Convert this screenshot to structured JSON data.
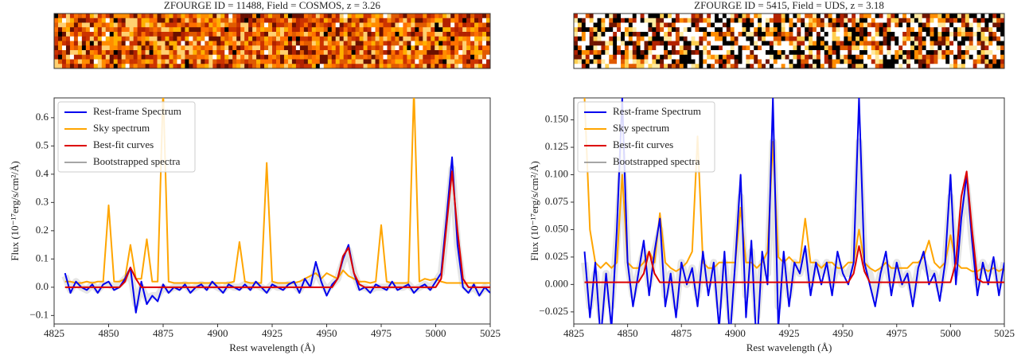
{
  "chart_data": [
    {
      "type": "line",
      "title": "ZFOURGE ID = 11488, Field = COSMOS, z = 3.26",
      "x_label": "Rest wavelength (Å)",
      "y_label": "Flux (10⁻¹⁷erg/s/cm²/Å)",
      "xlim": [
        4825,
        5025
      ],
      "ylim": [
        -0.13,
        0.67
      ],
      "xticks": [
        4825,
        4850,
        4875,
        4900,
        4925,
        4950,
        4975,
        5000,
        5025
      ],
      "yticks": [
        {
          "value": -0.1,
          "label": "−0.1"
        },
        {
          "value": 0,
          "label": "0.0"
        },
        0.1,
        0.2,
        0.3,
        0.4,
        0.5,
        0.6
      ],
      "legend": "upper left",
      "x": [
        4830,
        4832.5,
        4835,
        4837.5,
        4840,
        4842.5,
        4845,
        4847.5,
        4850,
        4852.5,
        4855,
        4857.5,
        4860,
        4862.5,
        4865,
        4867.5,
        4870,
        4872.5,
        4875,
        4877.5,
        4880,
        4882.5,
        4885,
        4887.5,
        4890,
        4892.5,
        4895,
        4897.5,
        4900,
        4902.5,
        4905,
        4907.5,
        4910,
        4912.5,
        4915,
        4917.5,
        4920,
        4922.5,
        4925,
        4927.5,
        4930,
        4932.5,
        4935,
        4937.5,
        4940,
        4942.5,
        4945,
        4947.5,
        4950,
        4952.5,
        4955,
        4957.5,
        4960,
        4962.5,
        4965,
        4967.5,
        4970,
        4972.5,
        4975,
        4977.5,
        4980,
        4982.5,
        4985,
        4987.5,
        4990,
        4992.5,
        4995,
        4997.5,
        5000,
        5002.5,
        5005,
        5007.5,
        5010,
        5012.5,
        5015,
        5017.5,
        5020,
        5022.5,
        5025
      ],
      "series": [
        {
          "name": "Rest-frame Spectrum",
          "color": "#0000ee",
          "values": [
            0.05,
            -0.02,
            0.02,
            0,
            -0.01,
            0.01,
            -0.02,
            0.01,
            0.02,
            -0.01,
            0,
            0.03,
            0.07,
            -0.09,
            0.02,
            -0.06,
            -0.03,
            -0.05,
            0.01,
            -0.02,
            0,
            -0.01,
            0.01,
            -0.02,
            0,
            0.01,
            -0.01,
            0.02,
            0,
            -0.02,
            0.01,
            0,
            -0.01,
            0.01,
            -0.01,
            0.02,
            0,
            -0.02,
            0.01,
            0,
            -0.01,
            0.01,
            0.02,
            -0.02,
            0.03,
            0,
            0.09,
            0.02,
            -0.03,
            0.01,
            0.03,
            0.1,
            0.15,
            0.05,
            -0.01,
            0,
            -0.02,
            0.01,
            0,
            -0.01,
            0.02,
            -0.01,
            0,
            0.01,
            -0.02,
            0,
            0.01,
            -0.01,
            0.02,
            0.05,
            0.25,
            0.46,
            0.15,
            0,
            -0.02,
            0.01,
            -0.03,
            0,
            -0.02
          ]
        },
        {
          "name": "Sky spectrum",
          "color": "#ffa500",
          "values": [
            0.02,
            0.02,
            0.015,
            0.015,
            0.02,
            0.015,
            0.02,
            0.02,
            0.29,
            0.02,
            0.02,
            0.03,
            0.15,
            0.03,
            0.03,
            0.17,
            0.02,
            0.02,
            0.7,
            0.02,
            0.015,
            0.015,
            0.015,
            0.015,
            0.015,
            0.015,
            0.015,
            0.015,
            0.015,
            0.015,
            0.015,
            0.02,
            0.16,
            0.02,
            0.015,
            0.015,
            0.015,
            0.44,
            0.02,
            0.015,
            0.015,
            0.015,
            0.015,
            0.02,
            0.03,
            0.04,
            0.05,
            0.03,
            0.05,
            0.04,
            0.03,
            0.06,
            0.04,
            0.03,
            0.02,
            0.02,
            0.015,
            0.02,
            0.22,
            0.02,
            0.015,
            0.015,
            0.015,
            0.015,
            0.7,
            0.02,
            0.03,
            0.025,
            0.03,
            0.02,
            0.015,
            0.015,
            0.015,
            0.015,
            0.015,
            0.015,
            0.015,
            0.015,
            0.015
          ]
        },
        {
          "name": "Best-fit curves",
          "color": "#dd0000",
          "values": [
            0,
            0,
            0,
            0,
            0,
            0,
            0,
            0,
            0,
            0,
            0,
            0.02,
            0.07,
            0.03,
            0,
            0,
            0,
            0,
            0,
            0,
            0,
            0,
            0,
            0,
            0,
            0,
            0,
            0,
            0,
            0,
            0,
            0,
            0,
            0,
            0,
            0,
            0,
            0,
            0,
            0,
            0,
            0,
            0,
            0,
            0,
            0,
            0,
            0,
            0,
            0,
            0.03,
            0.11,
            0.14,
            0.05,
            0.01,
            0,
            0,
            0,
            0,
            0,
            0,
            0,
            0,
            0,
            0,
            0,
            0,
            0,
            0,
            0.03,
            0.22,
            0.41,
            0.2,
            0.03,
            0,
            0,
            0,
            0,
            0
          ]
        },
        {
          "name": "Bootstrapped spectra",
          "color": "#888888",
          "values": [
            0.04,
            -0.01,
            0.02,
            0,
            -0.01,
            0.01,
            -0.01,
            0.01,
            0.01,
            0,
            0.01,
            0.03,
            0.05,
            -0.06,
            0,
            -0.04,
            -0.03,
            -0.03,
            0,
            -0.01,
            0,
            0,
            0.01,
            -0.01,
            0,
            0.01,
            0,
            0.01,
            0,
            -0.01,
            0.01,
            0,
            0,
            0.01,
            0,
            0.01,
            0,
            -0.01,
            0.01,
            0,
            0,
            0.01,
            0.01,
            -0.01,
            0.02,
            0.01,
            0.06,
            0.02,
            -0.01,
            0.01,
            0.03,
            0.09,
            0.13,
            0.05,
            0,
            0,
            -0.01,
            0,
            0,
            0,
            0.01,
            0,
            0,
            0.01,
            -0.01,
            0,
            0.01,
            0,
            0.02,
            0.05,
            0.22,
            0.42,
            0.15,
            0.01,
            -0.01,
            0,
            -0.02,
            0,
            -0.01
          ]
        }
      ]
    },
    {
      "type": "line",
      "title": "ZFOURGE ID = 5415, Field = UDS, z = 3.18",
      "x_label": "Rest wavelength (Å)",
      "y_label": "Flux (10⁻¹⁷erg/s/cm²/Å)",
      "xlim": [
        4825,
        5025
      ],
      "ylim": [
        -0.036,
        0.17
      ],
      "xticks": [
        4825,
        4850,
        4875,
        4900,
        4925,
        4950,
        4975,
        5000,
        5025
      ],
      "yticks": [
        {
          "value": -0.025,
          "label": "−0.025"
        },
        {
          "value": 0,
          "label": "0.000"
        },
        0.025,
        {
          "value": 0.05,
          "label": "0.050"
        },
        0.075,
        {
          "value": 0.1,
          "label": "0.100"
        },
        0.125,
        {
          "value": 0.15,
          "label": "0.150"
        }
      ],
      "legend": "upper left",
      "x": [
        4830,
        4832.5,
        4835,
        4837.5,
        4840,
        4842.5,
        4845,
        4847.5,
        4850,
        4852.5,
        4855,
        4857.5,
        4860,
        4862.5,
        4865,
        4867.5,
        4870,
        4872.5,
        4875,
        4877.5,
        4880,
        4882.5,
        4885,
        4887.5,
        4890,
        4892.5,
        4895,
        4897.5,
        4900,
        4902.5,
        4905,
        4907.5,
        4910,
        4912.5,
        4915,
        4917.5,
        4920,
        4922.5,
        4925,
        4927.5,
        4930,
        4932.5,
        4935,
        4937.5,
        4940,
        4942.5,
        4945,
        4947.5,
        4950,
        4952.5,
        4955,
        4957.5,
        4960,
        4962.5,
        4965,
        4967.5,
        4970,
        4972.5,
        4975,
        4977.5,
        4980,
        4982.5,
        4985,
        4987.5,
        4990,
        4992.5,
        4995,
        4997.5,
        5000,
        5002.5,
        5005,
        5007.5,
        5010,
        5012.5,
        5015,
        5017.5,
        5020,
        5022.5,
        5025
      ],
      "series": [
        {
          "name": "Rest-frame Spectrum",
          "color": "#0000ee",
          "values": [
            0.03,
            -0.03,
            0.02,
            -0.05,
            0.01,
            -0.04,
            0.05,
            0.17,
            0.02,
            -0.02,
            0.01,
            0.04,
            -0.01,
            0.03,
            0.06,
            -0.02,
            0.01,
            -0.03,
            0.02,
            0,
            0.015,
            -0.02,
            0.03,
            -0.01,
            0.02,
            -0.04,
            0.03,
            -0.05,
            0.02,
            0.1,
            -0.03,
            0.04,
            -0.06,
            0.03,
            0,
            0.17,
            -0.04,
            0.03,
            -0.02,
            0.02,
            0.01,
            0.035,
            -0.01,
            0.02,
            0,
            0.02,
            -0.01,
            0.03,
            0.01,
            0,
            0.02,
            0.17,
            0.02,
            0,
            -0.02,
            0.01,
            0.03,
            -0.01,
            0.02,
            0,
            0.01,
            -0.02,
            0.015,
            0.03,
            0,
            0.01,
            -0.015,
            0.02,
            0.1,
            0,
            0.06,
            0.1,
            0.04,
            -0.01,
            0.02,
            0,
            0.025,
            -0.01,
            0.02
          ]
        },
        {
          "name": "Sky spectrum",
          "color": "#ffa500",
          "values": [
            0.17,
            0.05,
            0.02,
            0.015,
            0.02,
            0.015,
            0.02,
            0.1,
            0.02,
            0.015,
            0.015,
            0.02,
            0.03,
            0.02,
            0.065,
            0.02,
            0.015,
            0.012,
            0.015,
            0.02,
            0.03,
            0.135,
            0.02,
            0.015,
            0.015,
            0.02,
            0.02,
            0.02,
            0.02,
            0.07,
            0.02,
            0.02,
            0.015,
            0.02,
            0.03,
            0.13,
            0.025,
            0.02,
            0.025,
            0.02,
            0.02,
            0.06,
            0.02,
            0.02,
            0.015,
            0.02,
            0.02,
            0.015,
            0.015,
            0.02,
            0.02,
            0.05,
            0.02,
            0.015,
            0.012,
            0.015,
            0.02,
            0.015,
            0.015,
            0.015,
            0.015,
            0.02,
            0.02,
            0.025,
            0.04,
            0.02,
            0.015,
            0.02,
            0.045,
            0.02,
            0.015,
            0.015,
            0.012,
            0.012,
            0.015,
            0.012,
            0.015,
            0.012,
            0.015
          ]
        },
        {
          "name": "Best-fit curves",
          "color": "#dd0000",
          "values": [
            0.002,
            0.002,
            0.002,
            0.002,
            0.002,
            0.002,
            0.002,
            0.002,
            0.002,
            0.002,
            0.002,
            0.01,
            0.03,
            0.01,
            0.002,
            0.002,
            0.002,
            0.002,
            0.002,
            0.002,
            0.002,
            0.002,
            0.002,
            0.002,
            0.002,
            0.002,
            0.002,
            0.002,
            0.002,
            0.002,
            0.002,
            0.002,
            0.002,
            0.002,
            0.002,
            0.002,
            0.002,
            0.002,
            0.002,
            0.002,
            0.002,
            0.002,
            0.002,
            0.002,
            0.002,
            0.002,
            0.002,
            0.002,
            0.002,
            0.002,
            0.01,
            0.035,
            0.012,
            0.002,
            0.002,
            0.002,
            0.002,
            0.002,
            0.002,
            0.002,
            0.002,
            0.002,
            0.002,
            0.002,
            0.002,
            0.002,
            0.002,
            0.002,
            0.002,
            0.02,
            0.08,
            0.103,
            0.05,
            0.005,
            0.002,
            0.002,
            0.002,
            0.002,
            0.002
          ]
        },
        {
          "name": "Bootstrapped spectra",
          "color": "#888888",
          "values": [
            0.02,
            -0.02,
            0.01,
            -0.03,
            0.01,
            -0.02,
            0.04,
            0.12,
            0.02,
            -0.01,
            0.01,
            0.03,
            0,
            0.03,
            0.05,
            -0.01,
            0.01,
            -0.02,
            0.02,
            0,
            0.015,
            -0.01,
            0.02,
            0,
            0.02,
            -0.02,
            0.02,
            -0.03,
            0.02,
            0.08,
            -0.01,
            0.03,
            -0.03,
            0.02,
            0.01,
            0.13,
            -0.02,
            0.02,
            -0.01,
            0.02,
            0.01,
            0.03,
            0,
            0.02,
            0.01,
            0.02,
            0,
            0.02,
            0.01,
            0.01,
            0.02,
            0.13,
            0.02,
            0.01,
            -0.01,
            0.01,
            0.02,
            0,
            0.02,
            0,
            0.01,
            -0.01,
            0.015,
            0.02,
            0.01,
            0.01,
            -0.005,
            0.02,
            0.08,
            0.01,
            0.06,
            0.09,
            0.04,
            0,
            0.02,
            0.01,
            0.02,
            0,
            0.02
          ]
        }
      ]
    }
  ]
}
